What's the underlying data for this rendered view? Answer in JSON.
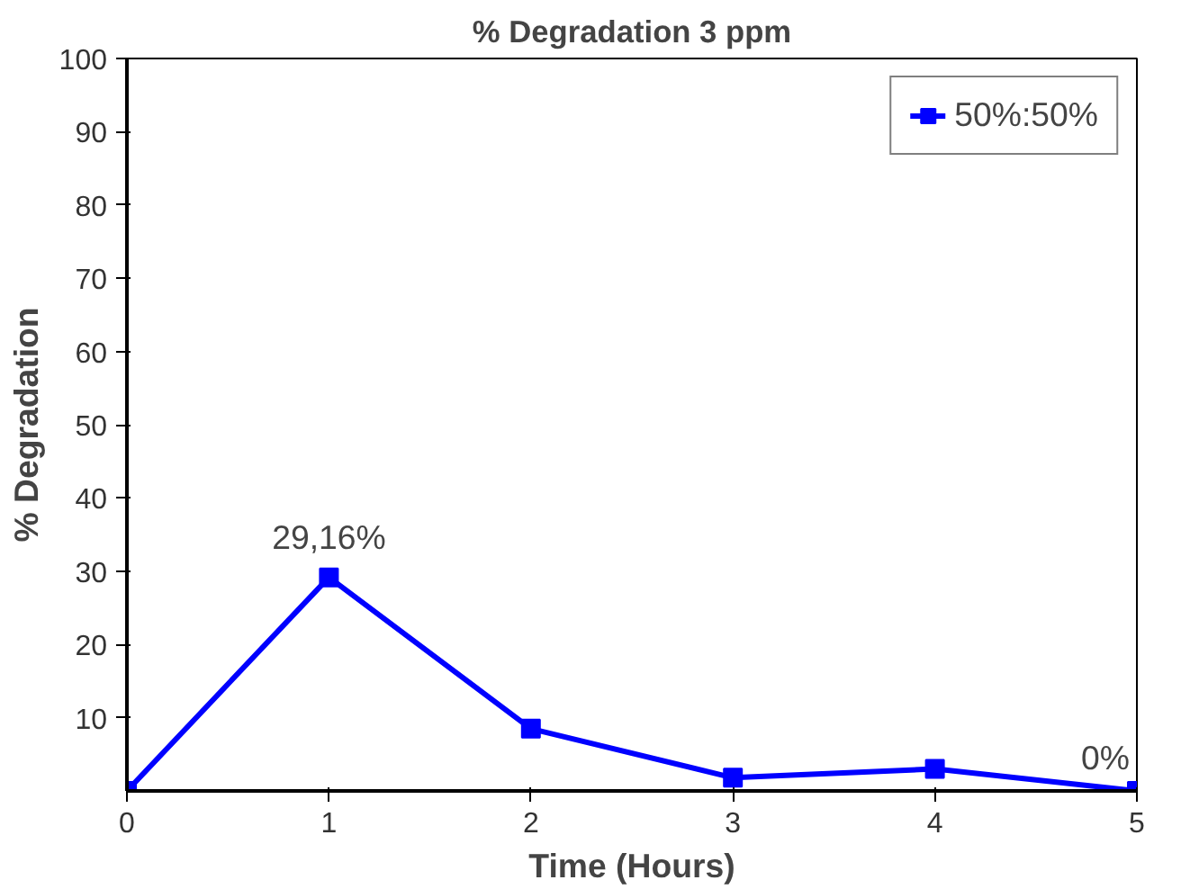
{
  "chart_data": {
    "type": "line",
    "title": "% Degradation 3 ppm",
    "xlabel": "Time (Hours)",
    "ylabel": "% Degradation",
    "x": [
      0,
      1,
      2,
      3,
      4,
      5
    ],
    "series": [
      {
        "name": "50%:50%",
        "color": "#0000ff",
        "values": [
          0,
          29.16,
          8.5,
          1.8,
          3.0,
          0
        ]
      }
    ],
    "xlim": [
      0,
      5
    ],
    "xticks": [
      0,
      1,
      2,
      3,
      4,
      5
    ],
    "ylim": [
      0,
      100
    ],
    "yticks": [
      10,
      20,
      30,
      40,
      50,
      60,
      70,
      80,
      90,
      100
    ],
    "annotations": [
      {
        "text": "29,16%",
        "x": 1,
        "y": 29.16
      },
      {
        "text": "0%",
        "x": 5,
        "y": 0
      }
    ],
    "grid": false,
    "legend": "top right",
    "marker": "square",
    "line_style": "solid"
  }
}
